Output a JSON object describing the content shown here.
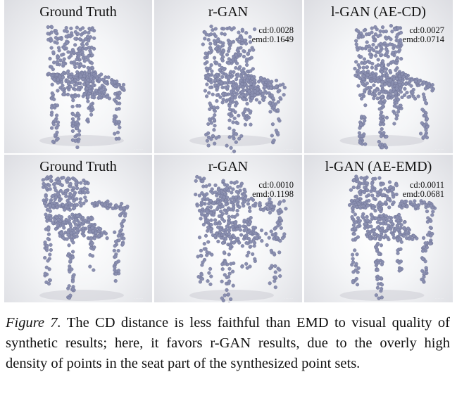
{
  "figure": {
    "rows": [
      {
        "panels": [
          {
            "title": "Ground Truth",
            "cd": "",
            "emd": "",
            "chair": "side-chair"
          },
          {
            "title": "r-GAN",
            "cd": "cd:0.0028",
            "emd": "emd:0.1649",
            "chair": "side-chair"
          },
          {
            "title": "l-GAN (AE-CD)",
            "cd": "cd:0.0027",
            "emd": "emd:0.0714",
            "chair": "side-chair"
          }
        ]
      },
      {
        "panels": [
          {
            "title": "Ground Truth",
            "cd": "",
            "emd": "",
            "chair": "armchair"
          },
          {
            "title": "r-GAN",
            "cd": "cd:0.0010",
            "emd": "emd:0.1198",
            "chair": "armchair"
          },
          {
            "title": "l-GAN (AE-EMD)",
            "cd": "cd:0.0011",
            "emd": "emd:0.0681",
            "chair": "armchair"
          }
        ]
      }
    ],
    "point_color": "#8a8fb0",
    "background_color": "#eceef2"
  },
  "caption": {
    "label": "Figure 7.",
    "text": " The CD distance is less faithful than EMD to visual quality of synthetic results; here, it favors r-GAN results, due to the overly high density of points in the seat part of the synthesized point sets."
  }
}
